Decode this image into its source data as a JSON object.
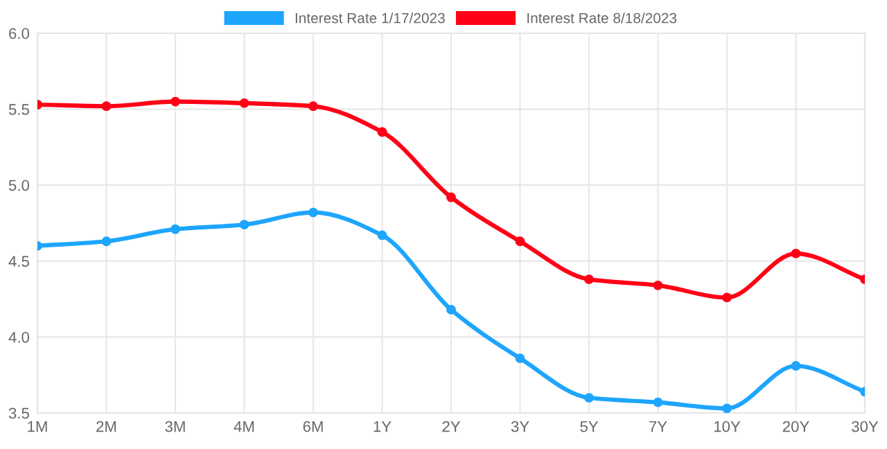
{
  "chart_data": {
    "type": "line",
    "categories": [
      "1M",
      "2M",
      "3M",
      "4M",
      "6M",
      "1Y",
      "2Y",
      "3Y",
      "5Y",
      "7Y",
      "10Y",
      "20Y",
      "30Y"
    ],
    "series": [
      {
        "name": "Interest Rate 1/17/2023",
        "color": "#1ea5fc",
        "values": [
          4.6,
          4.63,
          4.71,
          4.74,
          4.82,
          4.67,
          4.18,
          3.86,
          3.6,
          3.57,
          3.53,
          3.81,
          3.64
        ]
      },
      {
        "name": "Interest Rate 8/18/2023",
        "color": "#ff0016",
        "values": [
          5.53,
          5.52,
          5.55,
          5.54,
          5.52,
          5.35,
          4.92,
          4.63,
          4.38,
          4.34,
          4.26,
          4.55,
          4.38
        ]
      }
    ],
    "ylim": [
      3.5,
      6.0
    ],
    "yticks": [
      {
        "value": 3.5,
        "label": "3.5"
      },
      {
        "value": 4,
        "label": "4.0"
      },
      {
        "value": 4.5,
        "label": "4.5"
      },
      {
        "value": 5,
        "label": "5.0"
      },
      {
        "value": 5.5,
        "label": "5.5"
      },
      {
        "value": 6,
        "label": "6.0"
      }
    ],
    "grid": true,
    "legend": "top",
    "marker": "circle",
    "line_style": "solid"
  }
}
